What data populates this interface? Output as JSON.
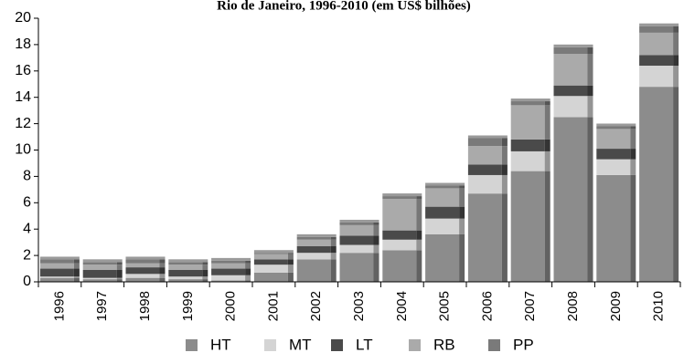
{
  "chart_data": {
    "type": "bar",
    "stacked": true,
    "title": "Rio de Janeiro, 1996-2010 (em US$ bilhões)",
    "xlabel": "",
    "ylabel": "",
    "categories": [
      "1996",
      "1997",
      "1998",
      "1999",
      "2000",
      "2001",
      "2002",
      "2003",
      "2004",
      "2005",
      "2006",
      "2007",
      "2008",
      "2009",
      "2010"
    ],
    "ylim": [
      0,
      20
    ],
    "yticks": [
      0,
      2,
      4,
      6,
      8,
      10,
      12,
      14,
      16,
      18,
      20
    ],
    "grid": false,
    "legend_position": "bottom",
    "series": [
      {
        "name": "HT",
        "color": "#8c8c8c",
        "values": [
          0.3,
          0.2,
          0.3,
          0.2,
          0.1,
          0.7,
          1.7,
          2.2,
          2.4,
          3.6,
          6.7,
          8.4,
          12.5,
          8.1,
          14.8
        ]
      },
      {
        "name": "MT",
        "color": "#d4d4d4",
        "values": [
          0.1,
          0.1,
          0.3,
          0.2,
          0.4,
          0.6,
          0.5,
          0.6,
          0.8,
          1.2,
          1.4,
          1.5,
          1.6,
          1.2,
          1.6
        ]
      },
      {
        "name": "LT",
        "color": "#4a4a4a",
        "values": [
          0.6,
          0.6,
          0.5,
          0.5,
          0.5,
          0.4,
          0.5,
          0.7,
          0.7,
          0.9,
          0.8,
          0.9,
          0.8,
          0.8,
          0.8
        ]
      },
      {
        "name": "RB",
        "color": "#aaaaaa",
        "values": [
          0.4,
          0.4,
          0.3,
          0.4,
          0.4,
          0.4,
          0.5,
          0.8,
          2.4,
          1.4,
          1.4,
          2.6,
          2.4,
          1.5,
          1.7
        ]
      },
      {
        "name": "PP",
        "color": "#7a7a7a",
        "values": [
          0.3,
          0.2,
          0.3,
          0.2,
          0.2,
          0.1,
          0.2,
          0.2,
          0.2,
          0.2,
          0.6,
          0.3,
          0.5,
          0.2,
          0.5
        ]
      }
    ]
  }
}
